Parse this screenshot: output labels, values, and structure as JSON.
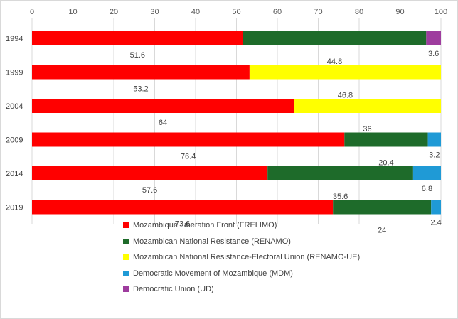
{
  "chart_data": {
    "type": "bar",
    "orientation": "horizontal",
    "stacked": true,
    "title": "",
    "xlabel": "",
    "ylabel": "",
    "xlim": [
      0,
      100
    ],
    "x_ticks": [
      0,
      10,
      20,
      30,
      40,
      50,
      60,
      70,
      80,
      90,
      100
    ],
    "x_axis_position": "top",
    "grid": true,
    "legend_position": "bottom",
    "categories": [
      "1994",
      "1999",
      "2004",
      "2009",
      "2014",
      "2019"
    ],
    "series": [
      {
        "name": "Mozambique Liberation Front (FRELIMO)",
        "color": "#ff0000",
        "values": [
          51.6,
          53.2,
          64,
          76.4,
          57.6,
          73.6
        ]
      },
      {
        "name": "Mozambican National Resistance (RENAMO)",
        "color": "#1e6b2a",
        "values": [
          44.8,
          0,
          0,
          20.4,
          35.6,
          24
        ]
      },
      {
        "name": "Mozambican National Resistance-Electoral Union (RENAMO-UE)",
        "color": "#ffff00",
        "values": [
          0,
          46.8,
          36,
          0,
          0,
          0
        ]
      },
      {
        "name": "Democratic Movement of Mozambique (MDM)",
        "color": "#1f9ad6",
        "values": [
          0,
          0,
          0,
          3.2,
          6.8,
          2.4
        ]
      },
      {
        "name": "Democratic Union (UD)",
        "color": "#9e3c9e",
        "values": [
          3.6,
          0,
          0,
          0,
          0,
          0
        ]
      }
    ]
  }
}
